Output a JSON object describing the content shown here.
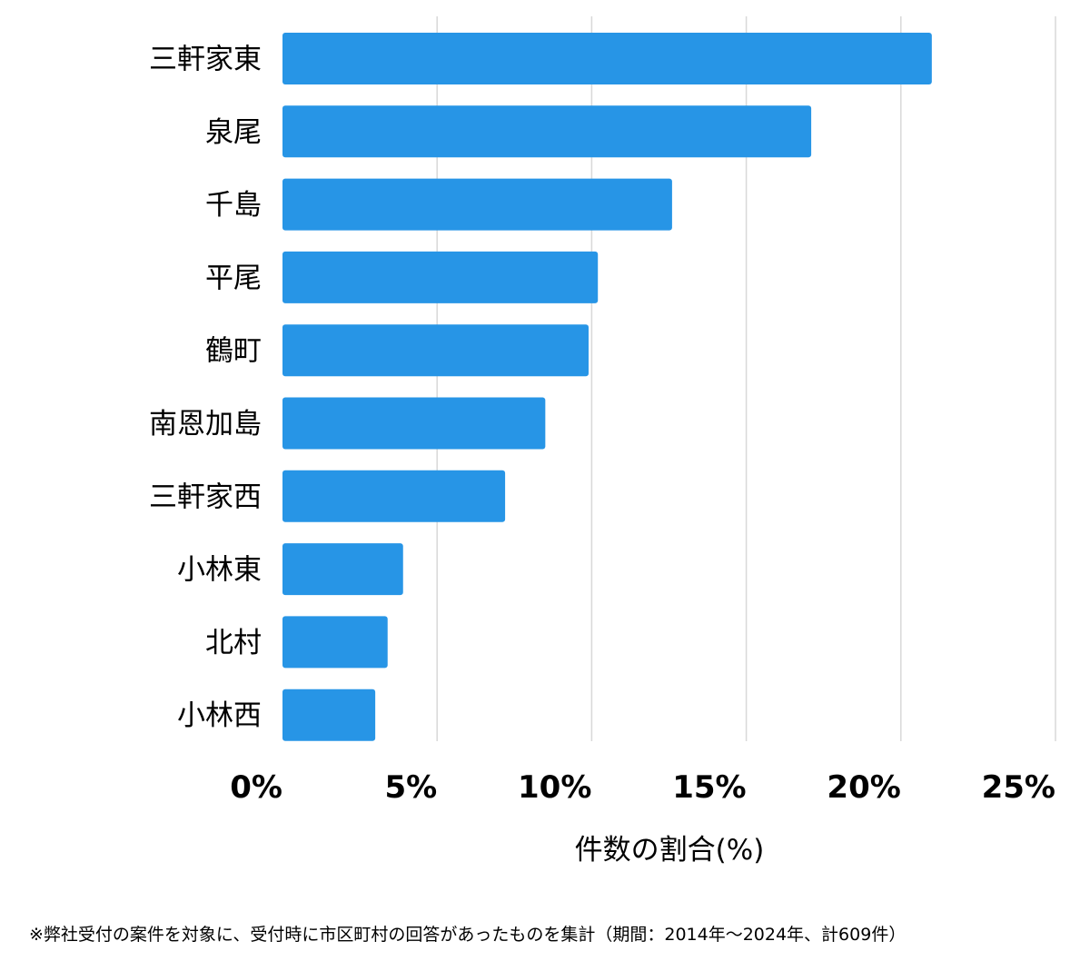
{
  "chart_data": {
    "type": "bar",
    "orientation": "horizontal",
    "categories": [
      "三軒家東",
      "泉尾",
      "千島",
      "平尾",
      "鶴町",
      "南恩加島",
      "三軒家西",
      "小林東",
      "北村",
      "小林西"
    ],
    "values": [
      21.0,
      17.1,
      12.6,
      10.2,
      9.9,
      8.5,
      7.2,
      3.9,
      3.4,
      3.0
    ],
    "xlabel": "件数の割合(%)",
    "xlim": [
      0,
      25
    ],
    "ticks": [
      0,
      5,
      10,
      15,
      20,
      25
    ],
    "tick_labels": [
      "0%",
      "5%",
      "10%",
      "15%",
      "20%",
      "25%"
    ],
    "grid": true,
    "bar_color": "#2795e6"
  },
  "footnote": "※弊社受付の案件を対象に、受付時に市区町村の回答があったものを集計（期間：2014年〜2024年、計609件）"
}
